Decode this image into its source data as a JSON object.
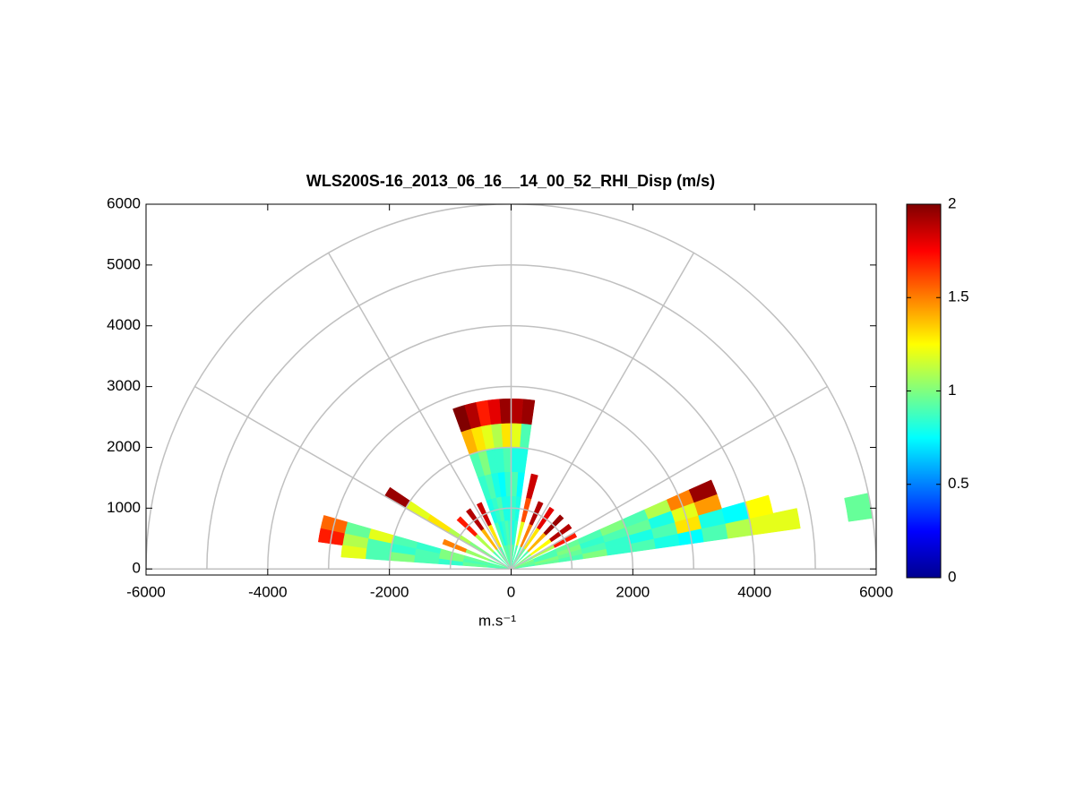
{
  "chart_data": {
    "type": "rhi",
    "title": "WLS200S-16_2013_06_16__14_00_52_RHI_Disp (m/s)",
    "xlabel": "m.s⁻¹",
    "xlim": [
      -6000,
      6000
    ],
    "xticks": [
      -6000,
      -4000,
      -2000,
      0,
      2000,
      4000,
      6000
    ],
    "ylim": [
      -100,
      6000
    ],
    "yticks": [
      0,
      1000,
      2000,
      3000,
      4000,
      5000,
      6000
    ],
    "rgrid": [
      1000,
      2000,
      3000,
      4000,
      5000,
      6000
    ],
    "thetagrid": [
      0,
      30,
      60,
      90,
      120,
      150,
      180
    ],
    "colormap": "jet",
    "clim": [
      0,
      2
    ],
    "cticks": [
      0,
      0.5,
      1,
      1.5,
      2
    ],
    "ranges": [
      0,
      400,
      800,
      1200,
      1600,
      2000,
      2400,
      2800,
      3200,
      3600,
      4000,
      4400,
      4800,
      5200,
      5600
    ],
    "beams": [
      {
        "elevation": 10,
        "values": [
          0.9,
          0.95,
          0.9,
          1.0,
          0.85,
          0.9,
          0.8,
          0.75,
          0.9,
          1.1,
          1.2,
          1.2,
          null,
          null,
          0.95
        ]
      },
      {
        "elevation": 14,
        "values": [
          0.95,
          1.0,
          0.95,
          0.9,
          0.85,
          0.8,
          0.9,
          1.3,
          0.8,
          0.75,
          1.25,
          null,
          null,
          null,
          null
        ]
      },
      {
        "elevation": 18,
        "values": [
          0.95,
          0.9,
          1.0,
          0.85,
          0.9,
          0.95,
          0.8,
          1.2,
          1.45,
          null,
          null,
          null,
          null,
          null,
          null
        ]
      },
      {
        "elevation": 22,
        "values": [
          1.0,
          0.9,
          0.95,
          0.9,
          1.0,
          0.9,
          1.1,
          1.5,
          1.95,
          null,
          null,
          null,
          null,
          null,
          null
        ]
      },
      {
        "elevation": 28,
        "values": [
          0.95,
          1.1,
          1.7,
          null,
          null,
          null,
          null,
          null,
          null,
          null,
          null,
          null,
          null,
          null,
          null
        ]
      },
      {
        "elevation": 36,
        "values": [
          1.0,
          1.25,
          1.9,
          null,
          null,
          null,
          null,
          null,
          null,
          null,
          null,
          null,
          null,
          null,
          null
        ]
      },
      {
        "elevation": 46,
        "values": [
          0.9,
          1.4,
          1.95,
          null,
          null,
          null,
          null,
          null,
          null,
          null,
          null,
          null,
          null,
          null,
          null
        ]
      },
      {
        "elevation": 56,
        "values": [
          0.95,
          1.3,
          1.8,
          null,
          null,
          null,
          null,
          null,
          null,
          null,
          null,
          null,
          null,
          null,
          null
        ]
      },
      {
        "elevation": 66,
        "values": [
          0.9,
          1.5,
          1.9,
          null,
          null,
          null,
          null,
          null,
          null,
          null,
          null,
          null,
          null,
          null,
          null
        ]
      },
      {
        "elevation": 76,
        "values": [
          0.9,
          1.2,
          1.6,
          1.85,
          null,
          null,
          null,
          null,
          null,
          null,
          null,
          null,
          null,
          null,
          null
        ]
      },
      {
        "elevation": 84,
        "values": [
          0.9,
          0.85,
          0.8,
          0.75,
          0.8,
          0.9,
          1.95,
          null,
          null,
          null,
          null,
          null,
          null,
          null,
          null
        ]
      },
      {
        "elevation": 88,
        "values": [
          0.95,
          0.8,
          0.85,
          0.9,
          0.8,
          1.2,
          1.9,
          null,
          null,
          null,
          null,
          null,
          null,
          null,
          null
        ]
      },
      {
        "elevation": 92,
        "values": [
          0.9,
          0.85,
          0.8,
          0.85,
          0.9,
          1.3,
          1.95,
          null,
          null,
          null,
          null,
          null,
          null,
          null,
          null
        ]
      },
      {
        "elevation": 96,
        "values": [
          0.95,
          0.9,
          0.8,
          0.75,
          0.85,
          1.1,
          1.8,
          null,
          null,
          null,
          null,
          null,
          null,
          null,
          null
        ]
      },
      {
        "elevation": 100,
        "values": [
          0.9,
          0.85,
          0.9,
          0.8,
          0.85,
          1.2,
          1.7,
          null,
          null,
          null,
          null,
          null,
          null,
          null,
          null
        ]
      },
      {
        "elevation": 104,
        "values": [
          0.9,
          0.8,
          0.85,
          0.9,
          1.0,
          1.3,
          1.9,
          null,
          null,
          null,
          null,
          null,
          null,
          null,
          null
        ]
      },
      {
        "elevation": 108,
        "values": [
          0.95,
          0.9,
          0.8,
          0.85,
          0.9,
          1.4,
          2.0,
          null,
          null,
          null,
          null,
          null,
          null,
          null,
          null
        ]
      },
      {
        "elevation": 116,
        "values": [
          0.9,
          1.3,
          1.85,
          null,
          null,
          null,
          null,
          null,
          null,
          null,
          null,
          null,
          null,
          null,
          null
        ]
      },
      {
        "elevation": 126,
        "values": [
          0.95,
          1.4,
          1.9,
          null,
          null,
          null,
          null,
          null,
          null,
          null,
          null,
          null,
          null,
          null,
          null
        ]
      },
      {
        "elevation": 136,
        "values": [
          0.9,
          1.1,
          1.7,
          null,
          null,
          null,
          null,
          null,
          null,
          null,
          null,
          null,
          null,
          null,
          null
        ]
      },
      {
        "elevation": 148,
        "values": [
          0.9,
          1.0,
          1.1,
          1.3,
          1.2,
          1.95,
          null,
          null,
          null,
          null,
          null,
          null,
          null,
          null,
          null
        ]
      },
      {
        "elevation": 158,
        "values": [
          0.95,
          1.05,
          1.5,
          null,
          null,
          null,
          null,
          null,
          null,
          null,
          null,
          null,
          null,
          null,
          null
        ]
      },
      {
        "elevation": 166,
        "values": [
          0.9,
          0.95,
          1.0,
          0.85,
          0.9,
          1.2,
          0.95,
          1.55,
          null,
          null,
          null,
          null,
          null,
          null,
          null
        ]
      },
      {
        "elevation": 170,
        "values": [
          0.95,
          0.9,
          1.0,
          0.9,
          0.85,
          0.9,
          1.1,
          1.7,
          null,
          null,
          null,
          null,
          null,
          null,
          null
        ]
      },
      {
        "elevation": 174,
        "values": [
          0.9,
          0.95,
          0.85,
          0.9,
          1.0,
          0.9,
          1.2,
          null,
          null,
          null,
          null,
          null,
          null,
          null,
          null
        ]
      }
    ]
  }
}
